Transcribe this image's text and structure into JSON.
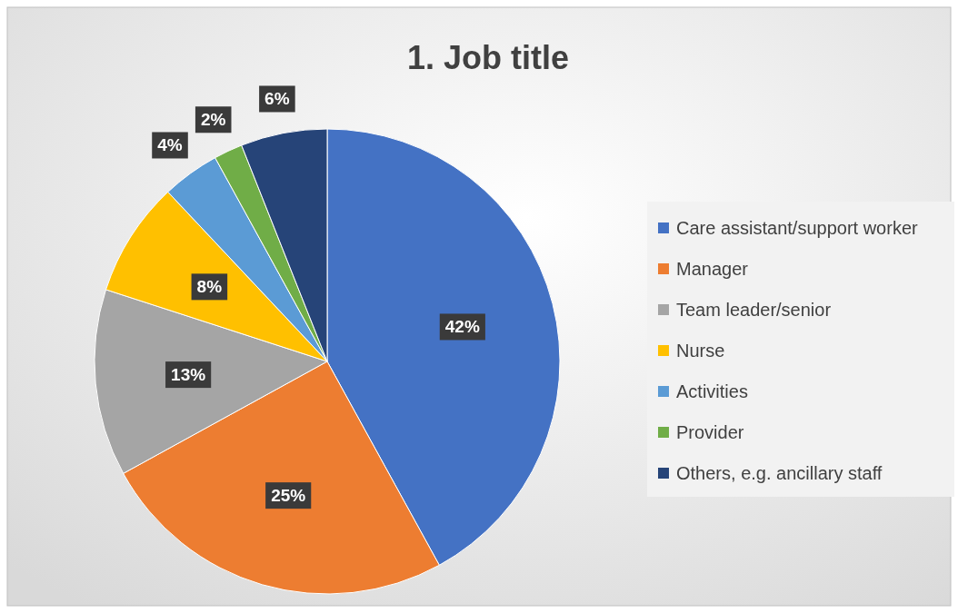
{
  "chart_data": {
    "type": "pie",
    "title": "1. Job title",
    "categories": [
      "Care assistant/support worker",
      "Manager",
      "Team leader/senior",
      "Nurse",
      "Activities",
      "Provider",
      "Others, e.g. ancillary staff"
    ],
    "values": [
      42,
      25,
      13,
      8,
      4,
      2,
      6
    ],
    "colors": [
      "#4472c4",
      "#ed7d31",
      "#a5a5a5",
      "#ffc000",
      "#5b9bd5",
      "#70ad47",
      "#264478"
    ],
    "value_labels": [
      "42%",
      "25%",
      "13%",
      "8%",
      "4%",
      "2%",
      "6%"
    ],
    "legend": "right"
  }
}
